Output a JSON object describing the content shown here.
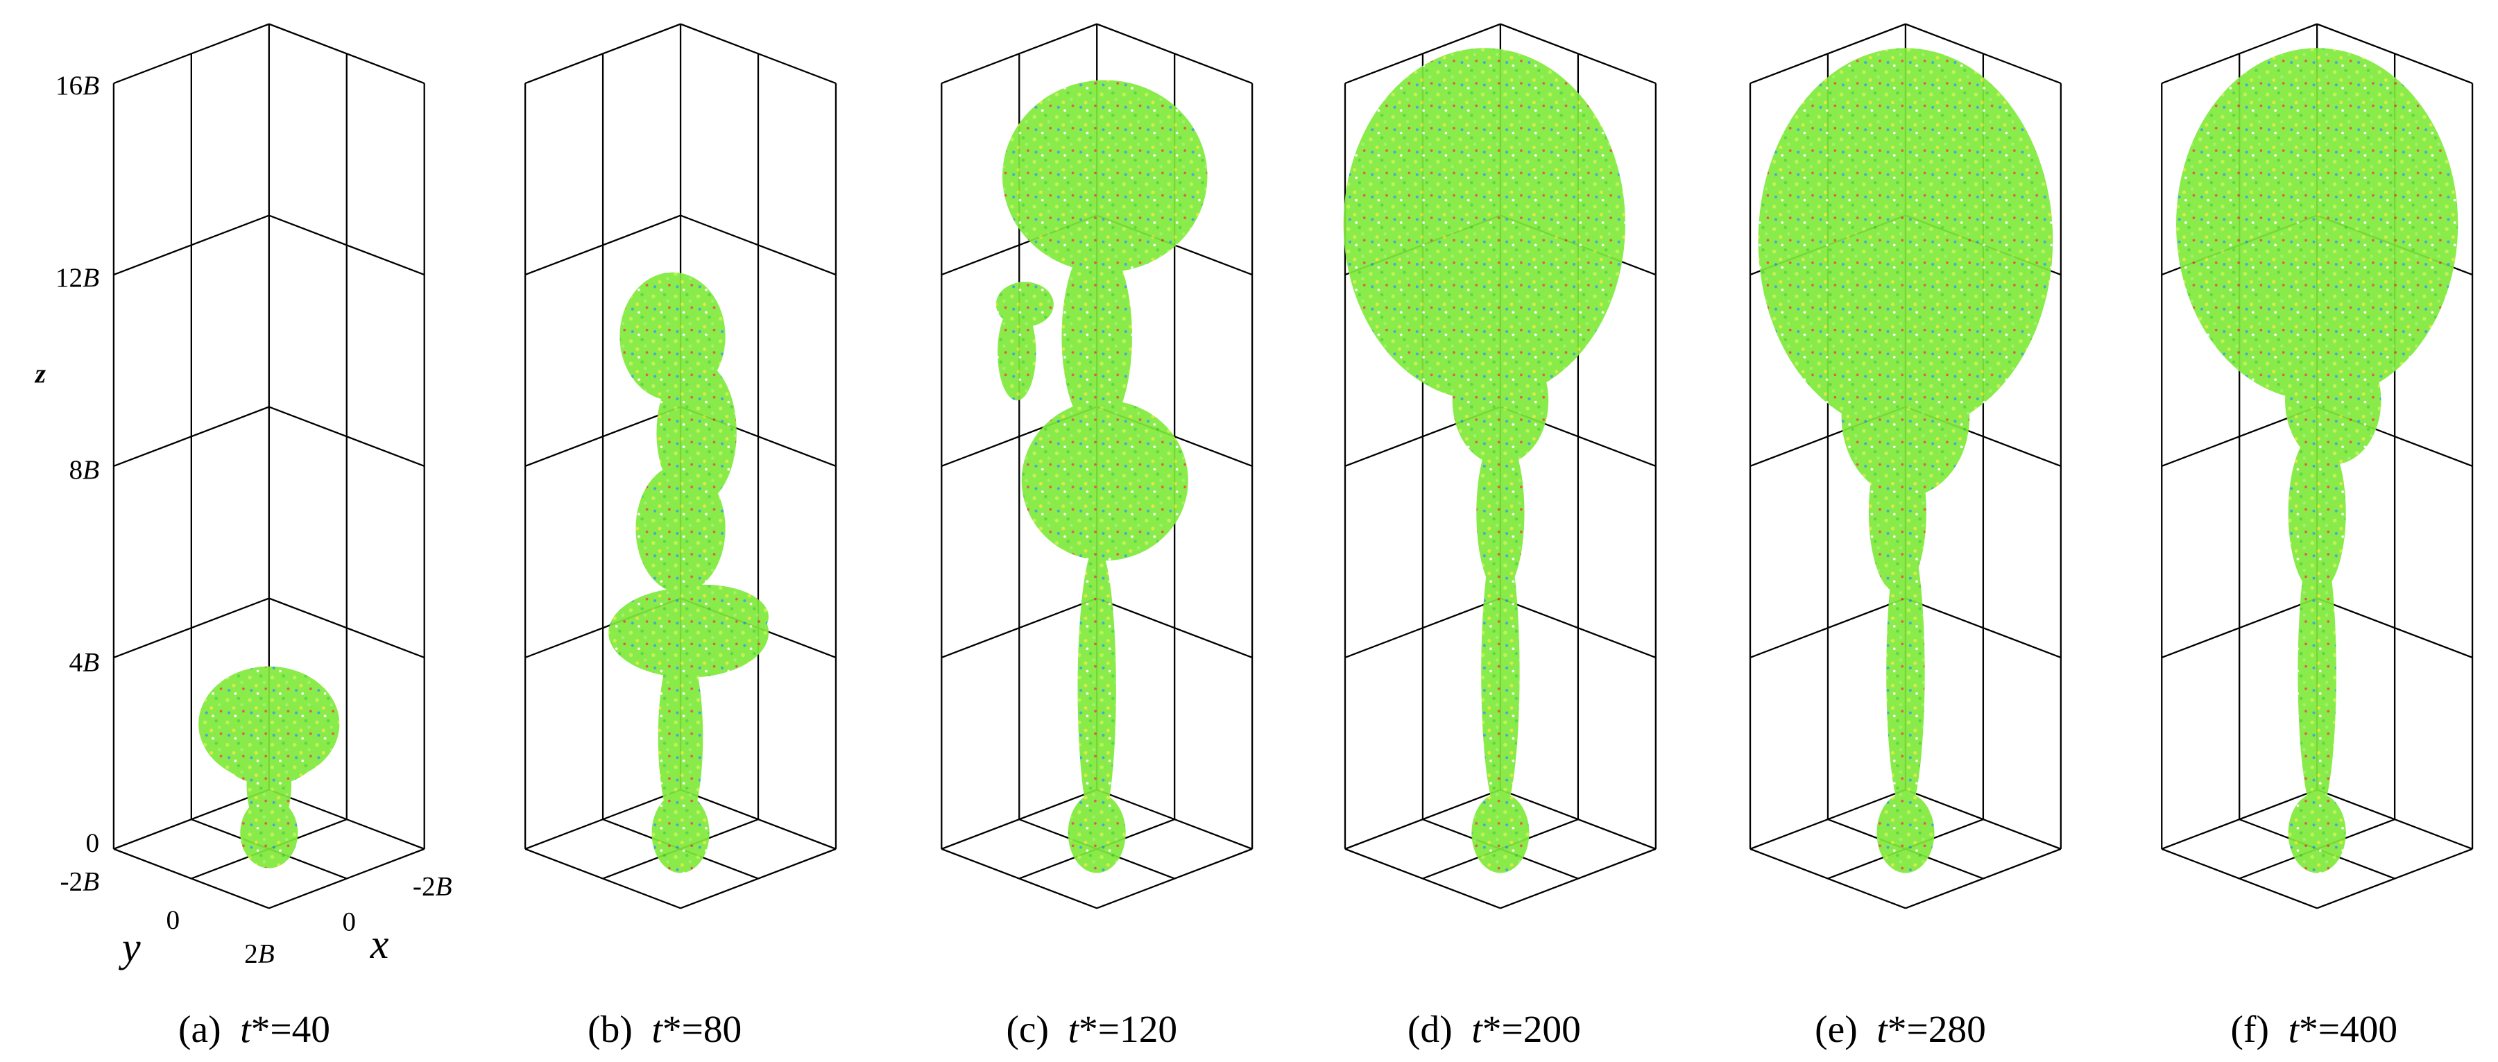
{
  "axes": {
    "z_label": "z",
    "z_ticks": [
      "16B",
      "12B",
      "8B",
      "4B",
      "0"
    ],
    "y_label": "y",
    "y_ticks": [
      "-2B",
      "0",
      "2B"
    ],
    "x_label": "x",
    "x_ticks": [
      "-2B",
      "0"
    ]
  },
  "panels": [
    {
      "label": "(a)",
      "time": "t*=40"
    },
    {
      "label": "(b)",
      "time": "t*=80"
    },
    {
      "label": "(c)",
      "time": "t*=120"
    },
    {
      "label": "(d)",
      "time": "t*=200"
    },
    {
      "label": "(e)",
      "time": "t*=280"
    },
    {
      "label": "(f)",
      "time": "t*=400"
    }
  ]
}
